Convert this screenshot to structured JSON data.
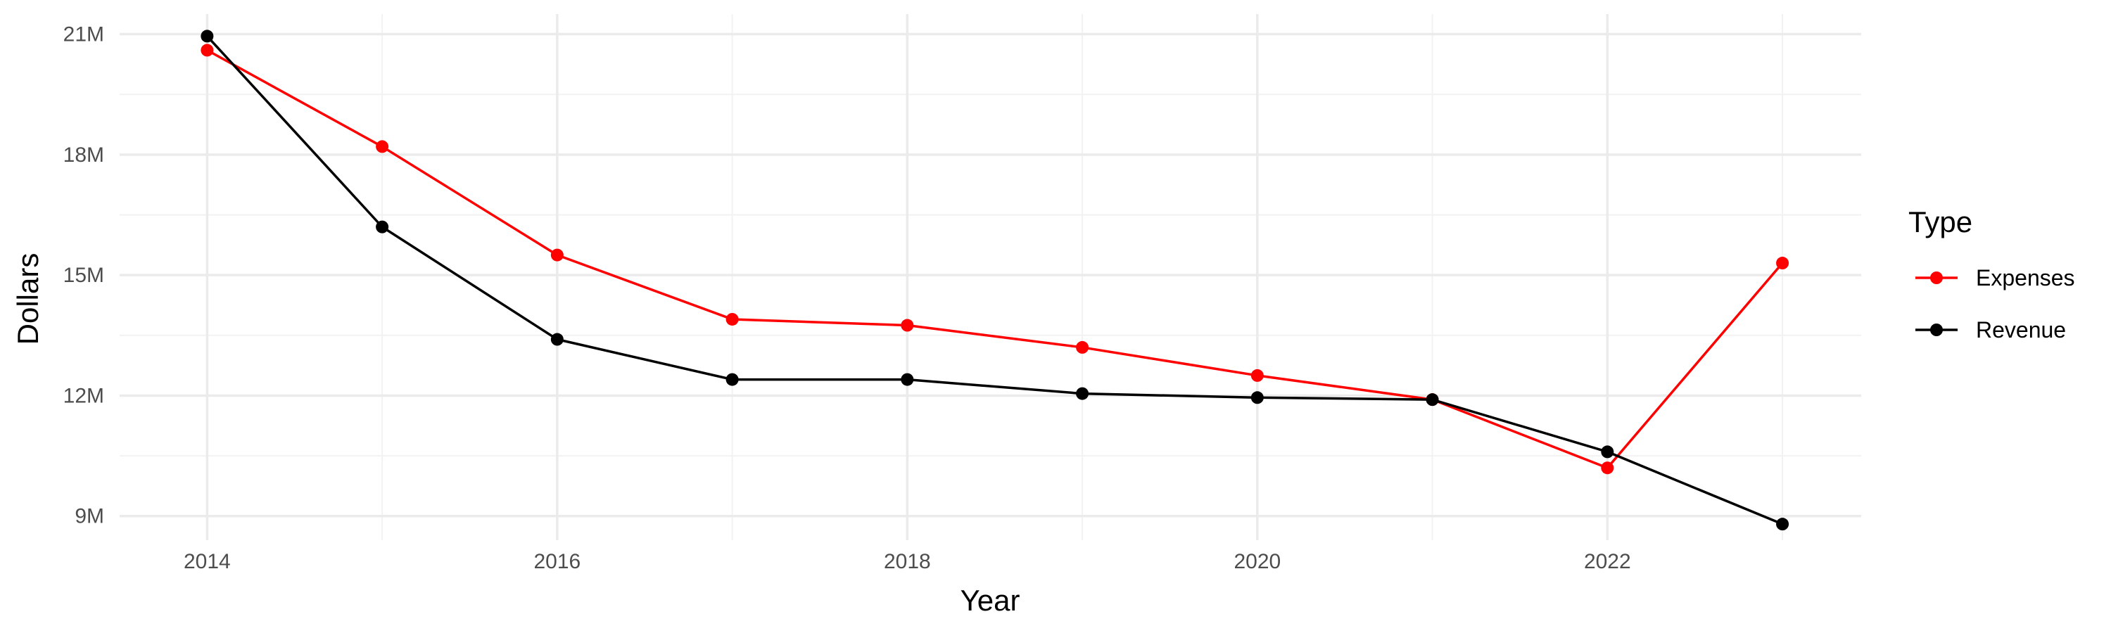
{
  "chart_data": {
    "type": "line",
    "title": "",
    "xlabel": "Year",
    "ylabel": "Dollars",
    "x": [
      2014,
      2015,
      2016,
      2017,
      2018,
      2019,
      2020,
      2021,
      2022,
      2023
    ],
    "xlim": [
      2013.5,
      2023.45
    ],
    "ylim": [
      8.4,
      21.5
    ],
    "x_ticks": [
      2014,
      2016,
      2018,
      2020,
      2022
    ],
    "x_tick_labels": [
      "2014",
      "2016",
      "2018",
      "2020",
      "2022"
    ],
    "y_ticks": [
      9,
      12,
      15,
      18,
      21
    ],
    "y_tick_labels": [
      "9M",
      "12M",
      "15M",
      "18M",
      "21M"
    ],
    "y_unit": "millions of dollars",
    "grid": true,
    "legend_title": "Type",
    "legend_position": "right",
    "series": [
      {
        "name": "Expenses",
        "color": "#ff0000",
        "values": [
          20.6,
          18.2,
          15.5,
          13.9,
          13.75,
          13.2,
          12.5,
          11.9,
          10.2,
          15.3
        ]
      },
      {
        "name": "Revenue",
        "color": "#000000",
        "values": [
          20.95,
          16.2,
          13.4,
          12.4,
          12.4,
          12.05,
          11.95,
          11.9,
          10.6,
          8.8
        ]
      }
    ]
  }
}
